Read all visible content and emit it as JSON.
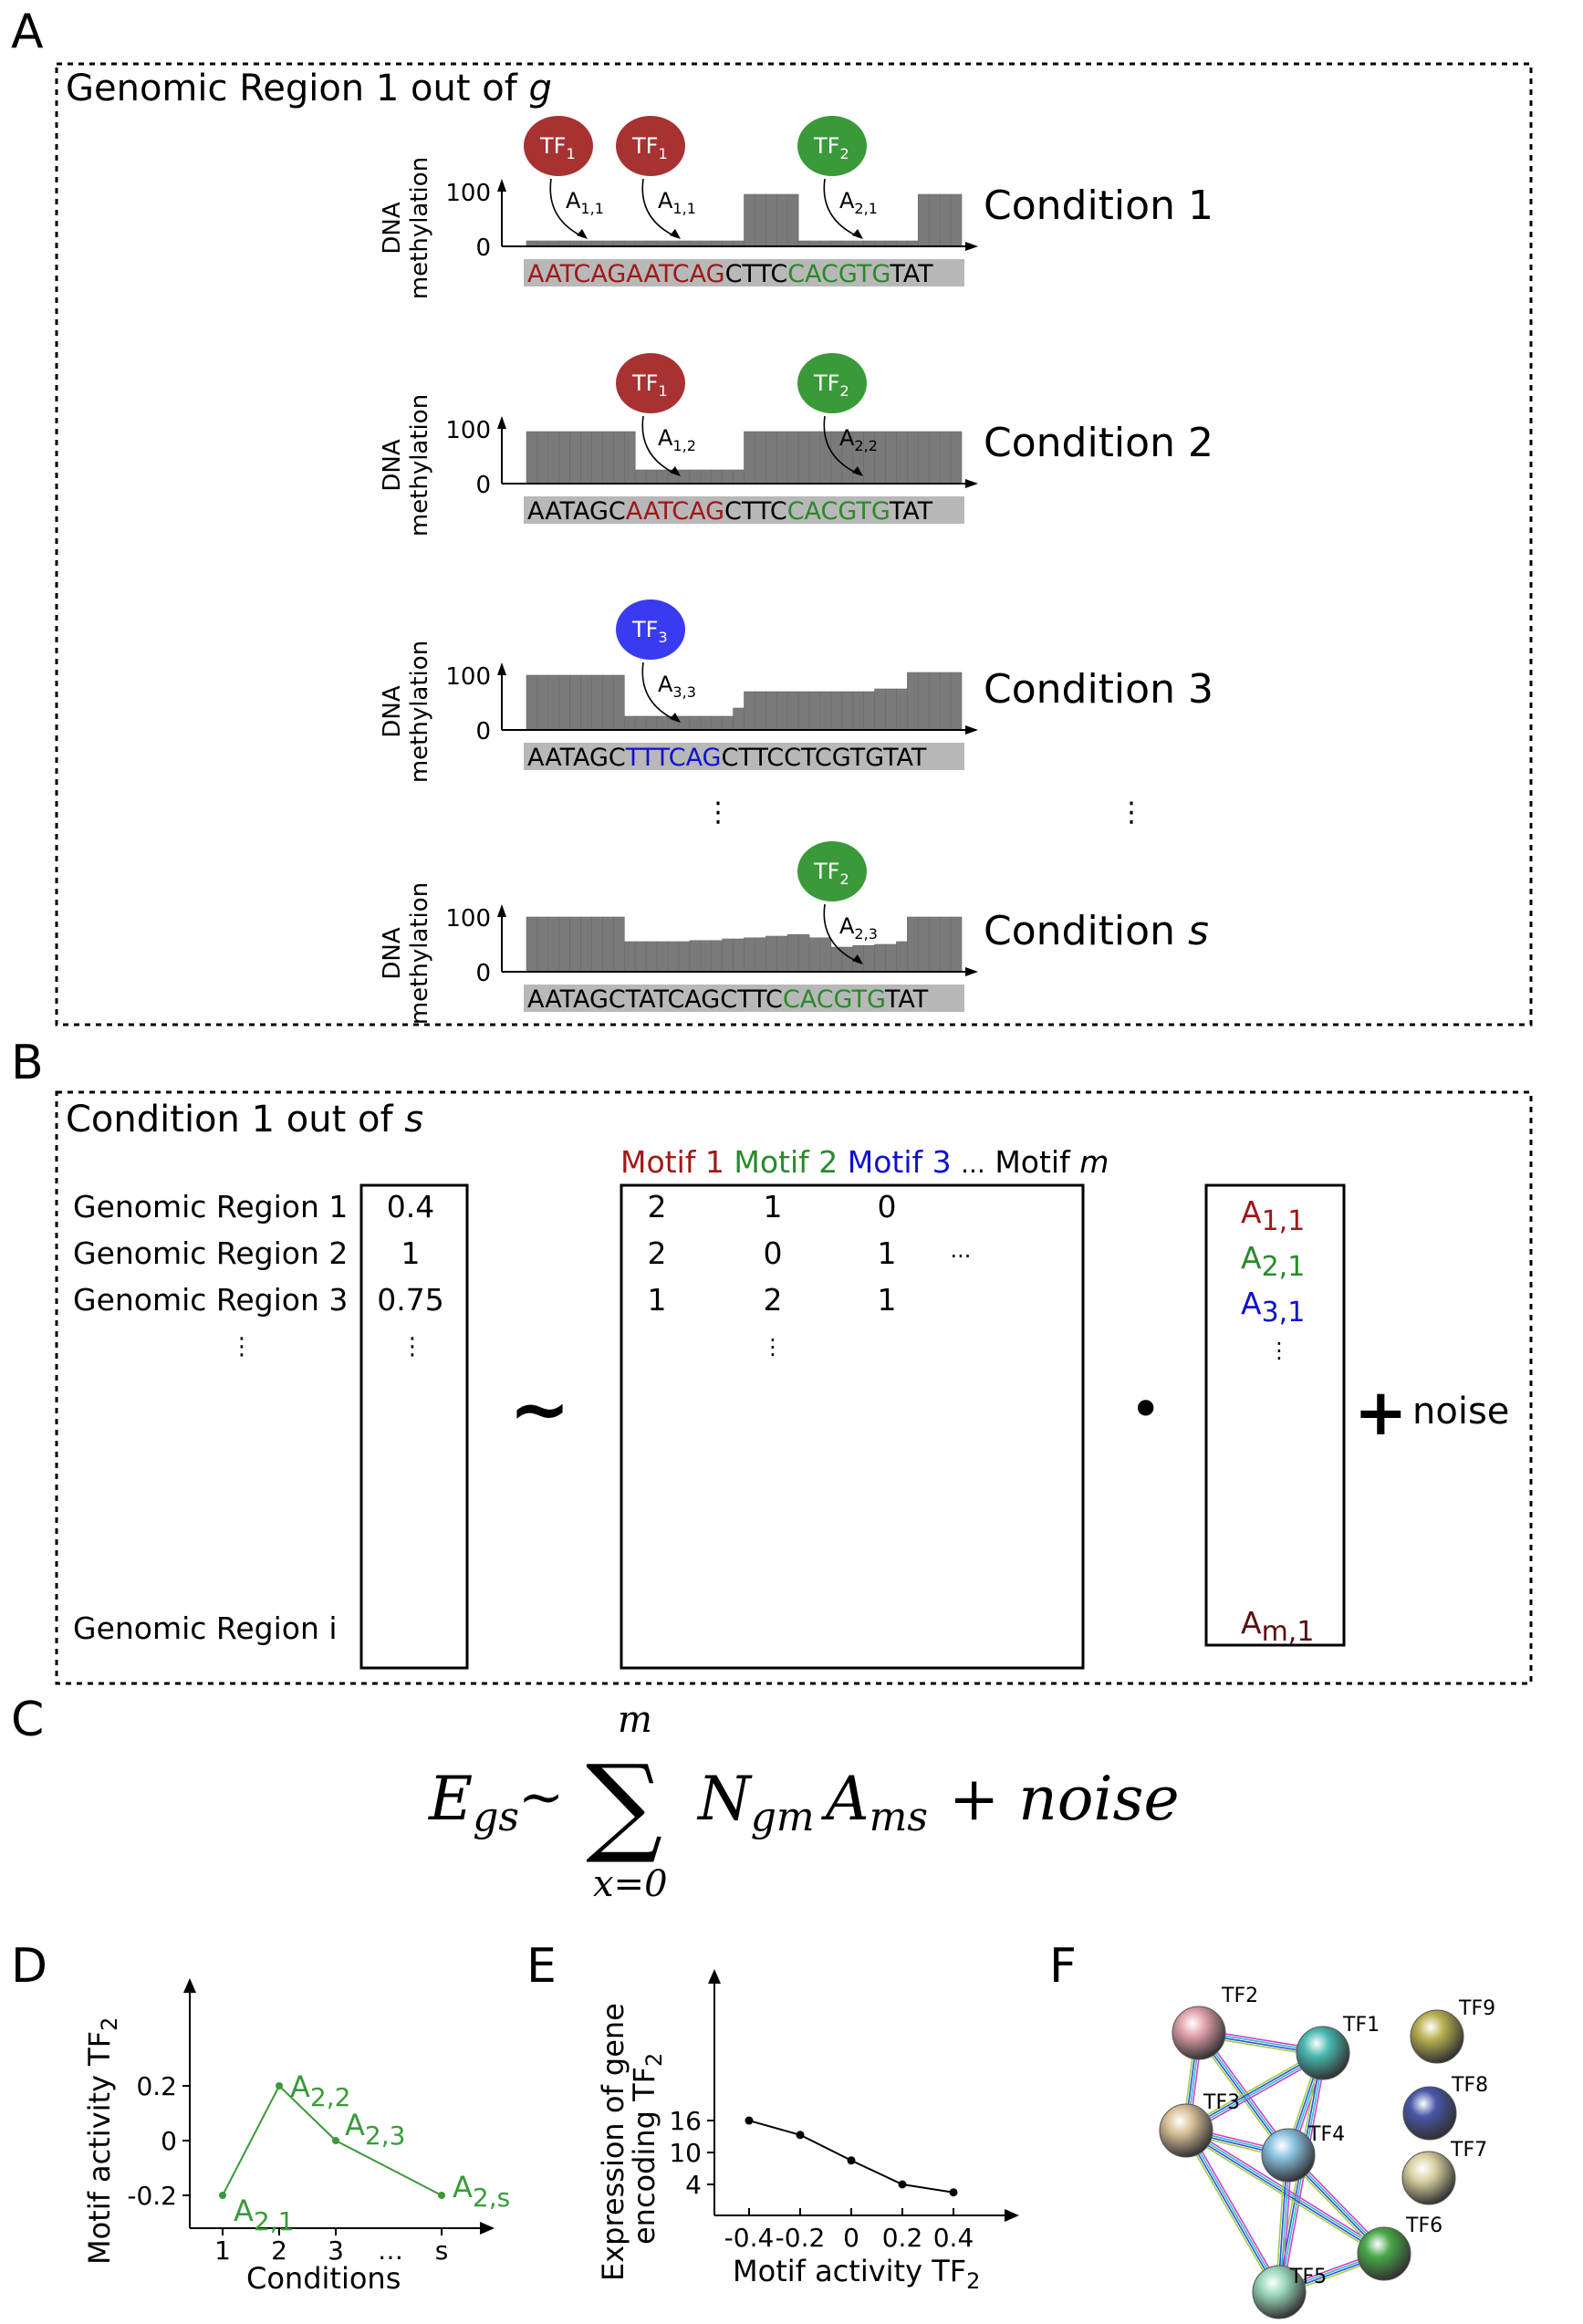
{
  "colors": {
    "red": "#a01818",
    "green": "#2a8a2a",
    "blue": "#1010d0",
    "bar": "#7a7a7a",
    "seq_bg": "#b8b8b8",
    "tf_red": "#a83232",
    "tf_green": "#3a9a3a",
    "tf_blue": "#3a3af0",
    "plot_green": "#3a9a3a"
  },
  "panel_a": {
    "letter": "A",
    "box_title_pre": "Genomic Region 1 out of ",
    "box_title_var": "g",
    "y_label_top": "DNA",
    "y_label_bottom": "methylation",
    "tick_100": "100",
    "tick_0": "0",
    "vdots": "⋮",
    "conditions": [
      {
        "label_pre": "Condition ",
        "label_var": "1",
        "tfs": [
          {
            "name": "TF",
            "sub": "1",
            "color": "red",
            "arrow_label": "A",
            "arrow_sub": "1,1"
          },
          {
            "name": "TF",
            "sub": "1",
            "color": "red",
            "arrow_label": "A",
            "arrow_sub": "1,1"
          },
          {
            "name": "TF",
            "sub": "2",
            "color": "green",
            "arrow_label": "A",
            "arrow_sub": "2,1"
          }
        ],
        "sequence": [
          {
            "text": "AATCAGAATCAG",
            "color": "red"
          },
          {
            "text": "CTTC",
            "color": "black"
          },
          {
            "text": "CACGTG",
            "color": "green"
          },
          {
            "text": "TAT",
            "color": "black"
          }
        ],
        "methylation": [
          10,
          10,
          10,
          10,
          10,
          10,
          10,
          10,
          10,
          10,
          10,
          10,
          10,
          10,
          10,
          10,
          10,
          10,
          10,
          10,
          95,
          95,
          95,
          95,
          95,
          10,
          10,
          10,
          10,
          10,
          10,
          10,
          10,
          10,
          10,
          10,
          95,
          95,
          95,
          95
        ]
      },
      {
        "label_pre": "Condition ",
        "label_var": "2",
        "tfs": [
          {
            "name": "TF",
            "sub": "1",
            "color": "red",
            "arrow_label": "A",
            "arrow_sub": "1,2"
          },
          {
            "name": "TF",
            "sub": "2",
            "color": "green",
            "arrow_label": "A",
            "arrow_sub": "2,2"
          }
        ],
        "sequence": [
          {
            "text": "AATAGC",
            "color": "black"
          },
          {
            "text": "AATCAG",
            "color": "red"
          },
          {
            "text": "CTTC",
            "color": "black"
          },
          {
            "text": "CACGTG",
            "color": "green"
          },
          {
            "text": "TAT",
            "color": "black"
          }
        ],
        "methylation": [
          95,
          95,
          95,
          95,
          95,
          95,
          95,
          95,
          95,
          95,
          25,
          25,
          25,
          25,
          25,
          25,
          25,
          25,
          25,
          25,
          95,
          95,
          95,
          95,
          95,
          95,
          95,
          95,
          95,
          95,
          95,
          95,
          95,
          95,
          95,
          95,
          95,
          95,
          95,
          95
        ]
      },
      {
        "label_pre": "Condition ",
        "label_var": "3",
        "tfs": [
          {
            "name": "TF",
            "sub": "3",
            "color": "blue",
            "arrow_label": "A",
            "arrow_sub": "3,3"
          }
        ],
        "sequence": [
          {
            "text": "AATAGC",
            "color": "black"
          },
          {
            "text": "TTTCAG",
            "color": "blue"
          },
          {
            "text": "CTTCCTCGTGTAT",
            "color": "black"
          }
        ],
        "methylation": [
          100,
          100,
          100,
          100,
          100,
          100,
          100,
          100,
          100,
          25,
          25,
          25,
          25,
          25,
          25,
          25,
          25,
          25,
          25,
          40,
          70,
          70,
          70,
          70,
          70,
          70,
          70,
          70,
          70,
          70,
          70,
          70,
          75,
          75,
          75,
          105,
          105,
          105,
          105,
          105
        ]
      },
      {
        "label_pre": "Condition ",
        "label_var": "s",
        "tfs": [
          {
            "name": "TF",
            "sub": "2",
            "color": "green",
            "arrow_label": "A",
            "arrow_sub": "2,3"
          }
        ],
        "sequence": [
          {
            "text": "AATAGCTATCAGCTTC",
            "color": "black"
          },
          {
            "text": "CACGTG",
            "color": "green"
          },
          {
            "text": "TAT",
            "color": "black"
          }
        ],
        "methylation": [
          100,
          100,
          100,
          100,
          100,
          100,
          100,
          100,
          100,
          55,
          55,
          55,
          55,
          55,
          55,
          57,
          57,
          57,
          60,
          60,
          62,
          62,
          65,
          65,
          68,
          68,
          62,
          62,
          45,
          45,
          48,
          48,
          50,
          50,
          55,
          100,
          100,
          100,
          100,
          100
        ]
      }
    ]
  },
  "panel_b": {
    "letter": "B",
    "box_title_pre": "Condition 1 out of ",
    "box_title_var": "s",
    "region_labels": [
      "Genomic Region 1",
      "Genomic Region 2",
      "Genomic Region 3",
      "⋮",
      "Genomic Region i"
    ],
    "y_values": [
      "0.4",
      "1",
      "0.75",
      "⋮"
    ],
    "tilde": "~",
    "motif_headers": [
      {
        "text": "Motif 1",
        "color": "red"
      },
      {
        "text": "Motif 2",
        "color": "green"
      },
      {
        "text": "Motif 3",
        "color": "blue"
      },
      {
        "text": "...",
        "color": "black"
      },
      {
        "text": "Motif ",
        "color": "black",
        "var": "m"
      }
    ],
    "matrix_rows": [
      [
        "2",
        "1",
        "0",
        ""
      ],
      [
        "2",
        "0",
        "1",
        "···"
      ],
      [
        "1",
        "2",
        "1",
        ""
      ],
      [
        "",
        "⋮",
        "",
        ""
      ]
    ],
    "dot": "•",
    "activities": [
      {
        "base": "A",
        "sub": "1,1",
        "color": "red"
      },
      {
        "base": "A",
        "sub": "2,1",
        "color": "green"
      },
      {
        "base": "A",
        "sub": "3,1",
        "color": "blue"
      },
      {
        "base": "⋮",
        "sub": "",
        "color": "black"
      },
      {
        "base": "A",
        "sub": "m,1",
        "color": "darkred"
      }
    ],
    "plus": "+",
    "noise": "noise"
  },
  "panel_c": {
    "letter": "C",
    "lhs_base": "E",
    "lhs_sub": "gs",
    "sim": "~",
    "sum_symbol": "∑",
    "sum_upper": "m",
    "sum_lower": "x=0",
    "term1_base": "N",
    "term1_sub": "gm",
    "term2_base": "A",
    "term2_sub": "ms",
    "rest": "+ noise"
  },
  "panel_d": {
    "letter": "D",
    "ylabel": "Motif activity TF",
    "ylabel_sub": "2",
    "xlabel": "Conditions",
    "chart_data": {
      "type": "line",
      "x": [
        "1",
        "2",
        "3",
        "…",
        "s"
      ],
      "series": [
        {
          "points": [
            {
              "x": "1",
              "y": -0.2,
              "label": "A",
              "label_sub": "2,1"
            },
            {
              "x": "2",
              "y": 0.2,
              "label": "A",
              "label_sub": "2,2"
            },
            {
              "x": "3",
              "y": 0.0,
              "label": "A",
              "label_sub": "2,3"
            },
            {
              "x": "s",
              "y": -0.2,
              "label": "A",
              "label_sub": "2,s"
            }
          ]
        }
      ],
      "yticks": [
        "0.2",
        "0",
        "-0.2"
      ],
      "ylim": [
        -0.3,
        0.4
      ]
    }
  },
  "panel_e": {
    "letter": "E",
    "ylabel_line1": "Expression of gene",
    "ylabel_line2": "encoding TF",
    "ylabel_sub": "2",
    "xlabel": "Motif activity TF",
    "xlabel_sub": "2",
    "chart_data": {
      "type": "line",
      "x": [
        -0.4,
        -0.2,
        0,
        0.2,
        0.4
      ],
      "series": [
        {
          "values": [
            16,
            13.3,
            8.5,
            4,
            2.5
          ]
        }
      ],
      "xticks": [
        "-0.4",
        "-0.2",
        "0",
        "0.2",
        "0.4"
      ],
      "yticks": [
        "16",
        "10",
        "4"
      ],
      "xlim": [
        -0.5,
        0.6
      ],
      "ylim": [
        1,
        20
      ]
    }
  },
  "panel_f": {
    "letter": "F",
    "nodes": [
      {
        "id": "TF2",
        "label": "TF2",
        "color": "#e0a0a8"
      },
      {
        "id": "TF1",
        "label": "TF1",
        "color": "#48b8b0"
      },
      {
        "id": "TF9",
        "label": "TF9",
        "color": "#b8b050"
      },
      {
        "id": "TF3",
        "label": "TF3",
        "color": "#d8c098"
      },
      {
        "id": "TF4",
        "label": "TF4",
        "color": "#88c0e0"
      },
      {
        "id": "TF8",
        "label": "TF8",
        "color": "#4858a8"
      },
      {
        "id": "TF7",
        "label": "TF7",
        "color": "#d8d0a0"
      },
      {
        "id": "TF6",
        "label": "TF6",
        "color": "#48a848"
      },
      {
        "id": "TF5",
        "label": "TF5",
        "color": "#98d8b8"
      }
    ],
    "edges": [
      [
        "TF2",
        "TF3"
      ],
      [
        "TF2",
        "TF4"
      ],
      [
        "TF2",
        "TF1"
      ],
      [
        "TF1",
        "TF3"
      ],
      [
        "TF1",
        "TF4"
      ],
      [
        "TF1",
        "TF5"
      ],
      [
        "TF3",
        "TF4"
      ],
      [
        "TF3",
        "TF6"
      ],
      [
        "TF3",
        "TF5"
      ],
      [
        "TF4",
        "TF6"
      ],
      [
        "TF4",
        "TF5"
      ],
      [
        "TF5",
        "TF6"
      ]
    ]
  }
}
